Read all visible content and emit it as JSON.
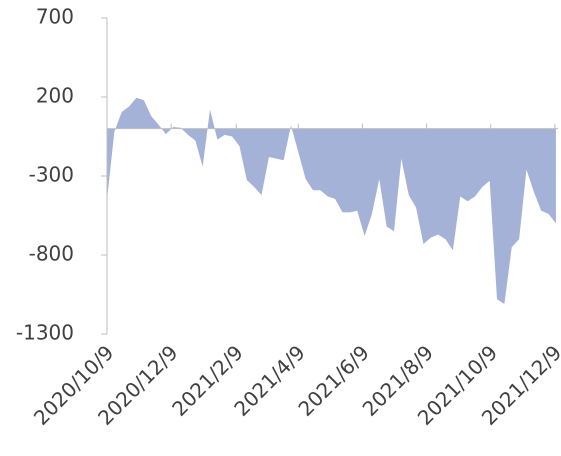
{
  "chart_data": {
    "type": "area",
    "x": [
      "2020-10-09",
      "2020-10-16",
      "2020-10-23",
      "2020-10-30",
      "2020-11-06",
      "2020-11-13",
      "2020-11-20",
      "2020-11-27",
      "2020-12-04",
      "2020-12-11",
      "2020-12-18",
      "2020-12-25",
      "2021-01-01",
      "2021-01-08",
      "2021-01-15",
      "2021-01-22",
      "2021-01-29",
      "2021-02-05",
      "2021-02-12",
      "2021-02-19",
      "2021-02-26",
      "2021-03-05",
      "2021-03-12",
      "2021-03-19",
      "2021-03-26",
      "2021-04-02",
      "2021-04-09",
      "2021-04-16",
      "2021-04-23",
      "2021-04-30",
      "2021-05-07",
      "2021-05-14",
      "2021-05-21",
      "2021-05-28",
      "2021-06-04",
      "2021-06-11",
      "2021-06-18",
      "2021-06-25",
      "2021-07-02",
      "2021-07-09",
      "2021-07-16",
      "2021-07-23",
      "2021-07-30",
      "2021-08-06",
      "2021-08-13",
      "2021-08-20",
      "2021-08-27",
      "2021-09-03",
      "2021-09-10",
      "2021-09-17",
      "2021-09-24",
      "2021-10-01",
      "2021-10-08",
      "2021-10-15",
      "2021-10-22",
      "2021-10-29",
      "2021-11-05",
      "2021-11-12",
      "2021-11-19",
      "2021-11-26",
      "2021-12-03",
      "2021-12-10"
    ],
    "values": [
      -450,
      -20,
      105,
      140,
      195,
      180,
      80,
      25,
      -35,
      10,
      5,
      -40,
      -75,
      -240,
      120,
      -70,
      -40,
      -50,
      -110,
      -325,
      -370,
      -420,
      -180,
      -190,
      -200,
      20,
      -150,
      -320,
      -390,
      -390,
      -430,
      -445,
      -530,
      -530,
      -520,
      -680,
      -540,
      -320,
      -620,
      -650,
      -190,
      -420,
      -500,
      -730,
      -690,
      -670,
      -700,
      -770,
      -430,
      -460,
      -430,
      -370,
      -330,
      -1080,
      -1110,
      -750,
      -700,
      -260,
      -400,
      -520,
      -540,
      -600
    ],
    "color": "#a3b2d6",
    "xlim": [
      "2020-10-09",
      "2021-12-12"
    ],
    "xticks": [
      {
        "value": "2020-10-09",
        "label": "2020/10/9"
      },
      {
        "value": "2020-12-09",
        "label": "2020/12/9"
      },
      {
        "value": "2021-02-09",
        "label": "2021/2/9"
      },
      {
        "value": "2021-04-09",
        "label": "2021/4/9"
      },
      {
        "value": "2021-06-09",
        "label": "2021/6/9"
      },
      {
        "value": "2021-08-09",
        "label": "2021/8/9"
      },
      {
        "value": "2021-10-09",
        "label": "2021/10/9"
      },
      {
        "value": "2021-12-09",
        "label": "2021/12/9"
      }
    ],
    "ylim": [
      -1300,
      700
    ],
    "yticks": [
      -1300,
      -800,
      -300,
      200,
      700
    ]
  }
}
